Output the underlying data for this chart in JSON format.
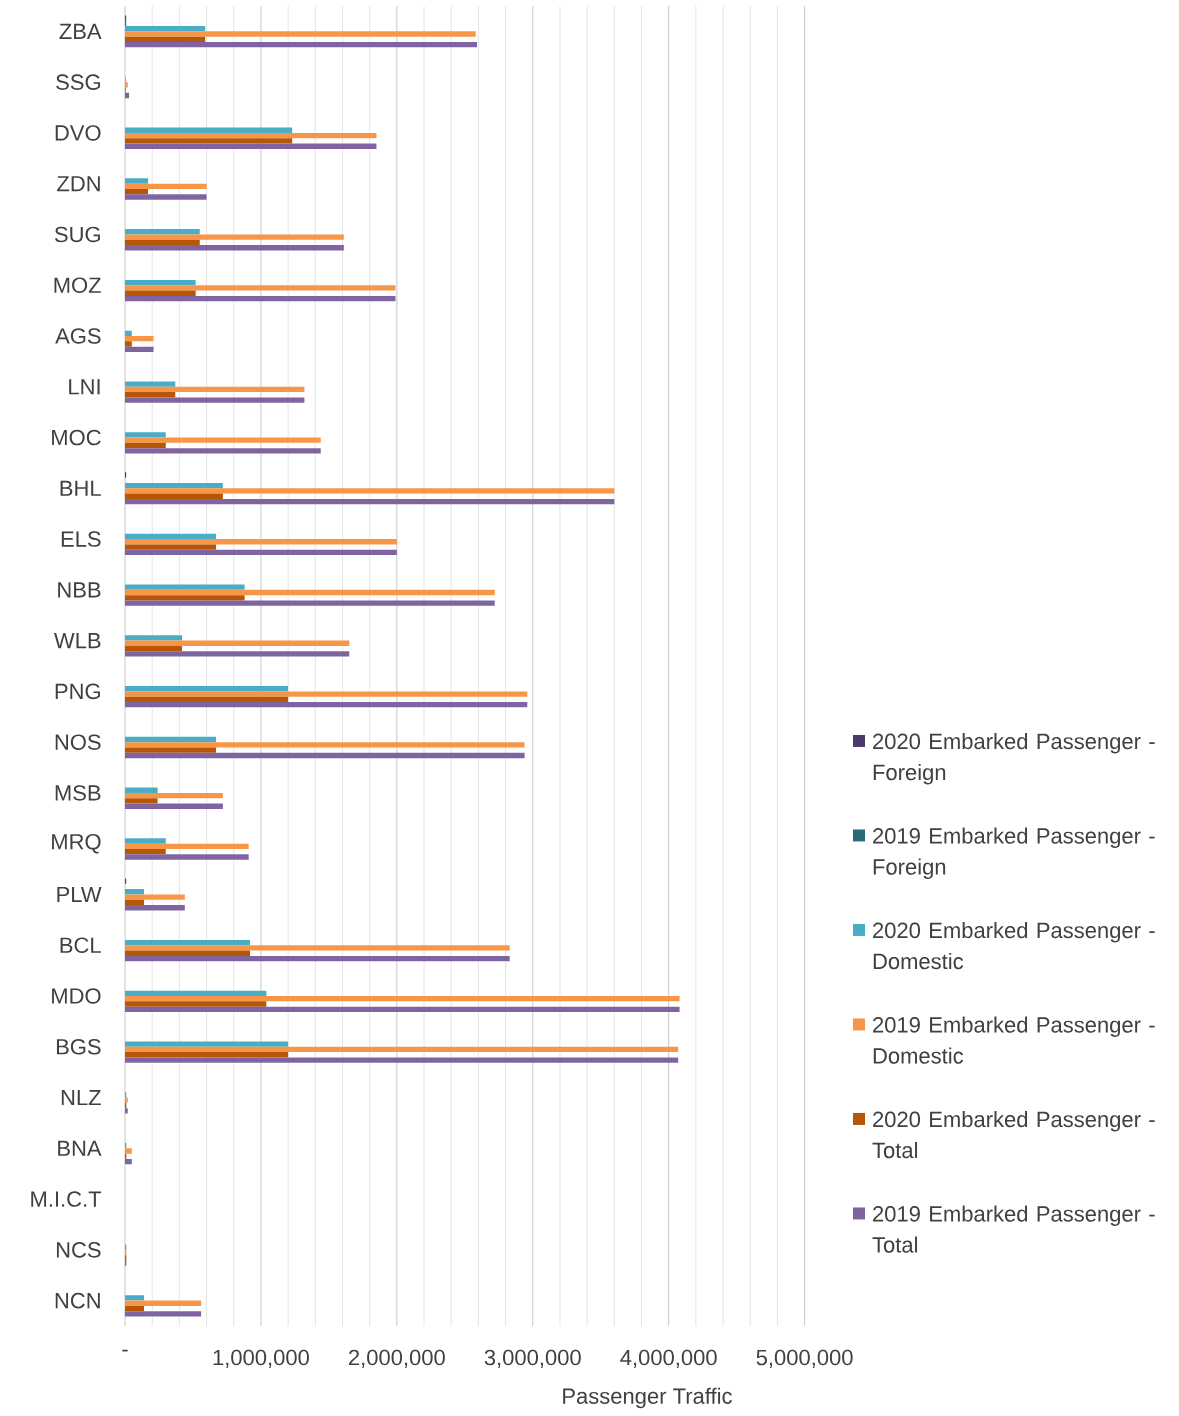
{
  "chart_data": {
    "type": "bar",
    "orientation": "horizontal",
    "xlabel": "Passenger Traffic",
    "categories": [
      "ZBA",
      "SSG",
      "DVO",
      "ZDN",
      "SUG",
      "MOZ",
      "AGS",
      "LNI",
      "MOC",
      "BHL",
      "ELS",
      "NBB",
      "WLB",
      "PNG",
      "NOS",
      "MSB",
      "MRQ",
      "PLW",
      "BCL",
      "MDO",
      "BGS",
      "NLZ",
      "BNA",
      "M.I.C.T",
      "NCS",
      "NCN"
    ],
    "series": [
      {
        "name": "2020 Embarked Passenger - Foreign",
        "color": "#4b3b6b",
        "values": [
          10000,
          null,
          null,
          null,
          null,
          null,
          null,
          null,
          null,
          10000,
          null,
          null,
          null,
          null,
          null,
          null,
          null,
          10000,
          null,
          null,
          null,
          null,
          null,
          null,
          null,
          null
        ]
      },
      {
        "name": "2019 Embarked Passenger - Foreign",
        "color": "#2b6a7b",
        "values": [
          10000,
          null,
          null,
          null,
          null,
          null,
          null,
          null,
          null,
          null,
          null,
          null,
          null,
          null,
          null,
          null,
          null,
          null,
          null,
          null,
          null,
          null,
          null,
          null,
          null,
          null
        ]
      },
      {
        "name": "2020 Embarked Passenger - Domestic",
        "color": "#4bacc6",
        "values": [
          590000,
          5000,
          1230000,
          170000,
          550000,
          520000,
          50000,
          370000,
          300000,
          720000,
          670000,
          880000,
          420000,
          1200000,
          670000,
          240000,
          300000,
          140000,
          920000,
          1040000,
          1200000,
          10000,
          10000,
          null,
          10000,
          140000
        ]
      },
      {
        "name": "2019 Embarked Passenger - Domestic",
        "color": "#f79646",
        "values": [
          2580000,
          20000,
          1850000,
          600000,
          1610000,
          1990000,
          210000,
          1320000,
          1440000,
          3600000,
          2000000,
          2720000,
          1650000,
          2960000,
          2940000,
          720000,
          910000,
          440000,
          2830000,
          4080000,
          4070000,
          20000,
          50000,
          null,
          10000,
          560000
        ]
      },
      {
        "name": "2020 Embarked Passenger - Total",
        "color": "#b65708",
        "values": [
          590000,
          5000,
          1230000,
          170000,
          550000,
          520000,
          50000,
          370000,
          300000,
          720000,
          670000,
          880000,
          420000,
          1200000,
          670000,
          240000,
          300000,
          140000,
          920000,
          1040000,
          1200000,
          10000,
          10000,
          null,
          10000,
          140000
        ]
      },
      {
        "name": "2019 Embarked Passenger - Total",
        "color": "#8064a2",
        "values": [
          2590000,
          30000,
          1850000,
          600000,
          1610000,
          1990000,
          210000,
          1320000,
          1440000,
          3600000,
          2000000,
          2720000,
          1650000,
          2960000,
          2940000,
          720000,
          910000,
          440000,
          2830000,
          4080000,
          4070000,
          20000,
          50000,
          null,
          10000,
          560000
        ]
      }
    ],
    "xlim": [
      0,
      5000000
    ],
    "xticks": [
      {
        "value": 0,
        "label": "-"
      },
      {
        "value": 1000000,
        "label": "1,000,000"
      },
      {
        "value": 2000000,
        "label": "2,000,000"
      },
      {
        "value": 3000000,
        "label": "3,000,000"
      },
      {
        "value": 4000000,
        "label": "4,000,000"
      },
      {
        "value": 5000000,
        "label": "5,000,000"
      }
    ],
    "grid": "x",
    "legend": "right"
  }
}
